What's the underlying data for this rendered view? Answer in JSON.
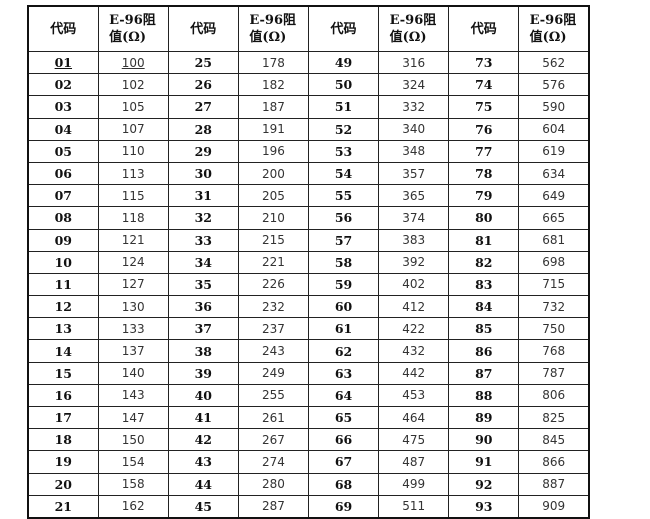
{
  "headers": [
    "代码",
    "E-96阻值(Ω)",
    "代码",
    "E-96阻值(Ω)",
    "代码",
    "E-96阻值(Ω)",
    "代码",
    "E-96阻值(Ω)"
  ],
  "header_parts": {
    "code": "代码",
    "value_line1": "E-96阻",
    "value_line2": "值(Ω)"
  },
  "rows": [
    [
      "01",
      "100",
      "25",
      "178",
      "49",
      "316",
      "73",
      "562"
    ],
    [
      "02",
      "102",
      "26",
      "182",
      "50",
      "324",
      "74",
      "576"
    ],
    [
      "03",
      "105",
      "27",
      "187",
      "51",
      "332",
      "75",
      "590"
    ],
    [
      "04",
      "107",
      "28",
      "191",
      "52",
      "340",
      "76",
      "604"
    ],
    [
      "05",
      "110",
      "29",
      "196",
      "53",
      "348",
      "77",
      "619"
    ],
    [
      "06",
      "113",
      "30",
      "200",
      "54",
      "357",
      "78",
      "634"
    ],
    [
      "07",
      "115",
      "31",
      "205",
      "55",
      "365",
      "79",
      "649"
    ],
    [
      "08",
      "118",
      "32",
      "210",
      "56",
      "374",
      "80",
      "665"
    ],
    [
      "09",
      "121",
      "33",
      "215",
      "57",
      "383",
      "81",
      "681"
    ],
    [
      "10",
      "124",
      "34",
      "221",
      "58",
      "392",
      "82",
      "698"
    ],
    [
      "11",
      "127",
      "35",
      "226",
      "59",
      "402",
      "83",
      "715"
    ],
    [
      "12",
      "130",
      "36",
      "232",
      "60",
      "412",
      "84",
      "732"
    ],
    [
      "13",
      "133",
      "37",
      "237",
      "61",
      "422",
      "85",
      "750"
    ],
    [
      "14",
      "137",
      "38",
      "243",
      "62",
      "432",
      "86",
      "768"
    ],
    [
      "15",
      "140",
      "39",
      "249",
      "63",
      "442",
      "87",
      "787"
    ],
    [
      "16",
      "143",
      "40",
      "255",
      "64",
      "453",
      "88",
      "806"
    ],
    [
      "17",
      "147",
      "41",
      "261",
      "65",
      "464",
      "89",
      "825"
    ],
    [
      "18",
      "150",
      "42",
      "267",
      "66",
      "475",
      "90",
      "845"
    ],
    [
      "19",
      "154",
      "43",
      "274",
      "67",
      "487",
      "91",
      "866"
    ],
    [
      "20",
      "158",
      "44",
      "280",
      "68",
      "499",
      "92",
      "887"
    ],
    [
      "21",
      "162",
      "45",
      "287",
      "69",
      "511",
      "93",
      "909"
    ]
  ]
}
